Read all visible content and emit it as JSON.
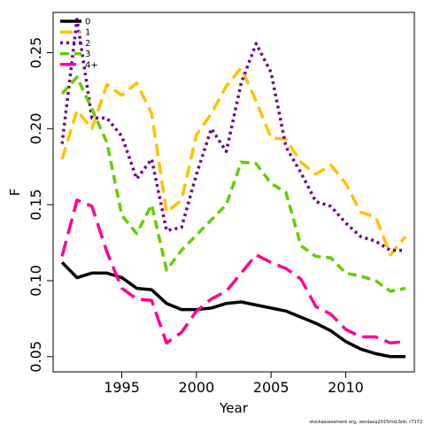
{
  "chart_data": {
    "type": "line",
    "title": "",
    "xlabel": "Year",
    "ylabel": "F",
    "xlim": [
      1990.4,
      2014.6
    ],
    "ylim": [
      0.04,
      0.2765
    ],
    "xticks": [
      1995,
      2000,
      2005,
      2010
    ],
    "yticks": [
      0.05,
      0.1,
      0.15,
      0.2,
      0.25
    ],
    "ytick_labels": [
      "0.05",
      "0.10",
      "0.15",
      "0.20",
      "0.25"
    ],
    "grid": false,
    "legend_position": "top-left",
    "x": [
      1991,
      1992,
      1993,
      1994,
      1995,
      1996,
      1997,
      1998,
      1999,
      2000,
      2001,
      2002,
      2003,
      2004,
      2005,
      2006,
      2007,
      2008,
      2009,
      2010,
      2011,
      2012,
      2013,
      2014
    ],
    "series": [
      {
        "name": "0",
        "color": "#000000",
        "dash": "solid",
        "values": [
          0.112,
          0.102,
          0.105,
          0.105,
          0.102,
          0.095,
          0.094,
          0.085,
          0.081,
          0.081,
          0.082,
          0.085,
          0.086,
          0.084,
          0.082,
          0.08,
          0.076,
          0.072,
          0.067,
          0.06,
          0.055,
          0.052,
          0.05,
          0.05
        ]
      },
      {
        "name": "1",
        "color": "#FFC200",
        "dash": "long",
        "values": [
          0.18,
          0.212,
          0.2,
          0.229,
          0.222,
          0.23,
          0.21,
          0.145,
          0.153,
          0.196,
          0.21,
          0.228,
          0.24,
          0.218,
          0.194,
          0.193,
          0.178,
          0.17,
          0.176,
          0.164,
          0.145,
          0.142,
          0.117,
          0.129
        ]
      },
      {
        "name": "2",
        "color": "#6A0094",
        "dash": "dot",
        "values": [
          0.19,
          0.272,
          0.207,
          0.207,
          0.195,
          0.167,
          0.18,
          0.133,
          0.135,
          0.17,
          0.2,
          0.185,
          0.23,
          0.256,
          0.237,
          0.188,
          0.171,
          0.152,
          0.149,
          0.138,
          0.129,
          0.126,
          0.12,
          0.12
        ]
      },
      {
        "name": "3",
        "color": "#66CC00",
        "dash": "dash",
        "values": [
          0.223,
          0.234,
          0.213,
          0.191,
          0.143,
          0.131,
          0.15,
          0.107,
          0.12,
          0.13,
          0.14,
          0.15,
          0.178,
          0.177,
          0.164,
          0.158,
          0.123,
          0.116,
          0.115,
          0.105,
          0.103,
          0.1,
          0.093,
          0.095
        ]
      },
      {
        "name": "4+",
        "color": "#FF0099",
        "dash": "longdash",
        "values": [
          0.116,
          0.153,
          0.149,
          0.119,
          0.095,
          0.088,
          0.087,
          0.059,
          0.066,
          0.08,
          0.088,
          0.093,
          0.105,
          0.117,
          0.112,
          0.108,
          0.101,
          0.083,
          0.078,
          0.068,
          0.063,
          0.063,
          0.059,
          0.06
        ]
      }
    ]
  },
  "credit": "stockassessment.org, vendace2015mxLSnk, r7172"
}
